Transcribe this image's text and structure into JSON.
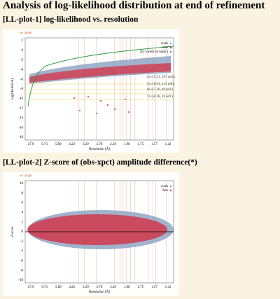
{
  "header": {
    "title": "Analysis of log-likelihood distribution at end of refinement"
  },
  "sections": [
    {
      "heading": "[LL-plot-1] log-likelihood vs. resolution",
      "plot": {
        "range_note": "no range",
        "y_label": "log(likelihood)",
        "x_label": "Resolution [Å]",
        "yticks": [
          "2",
          "0",
          "-2",
          "-4",
          "-6",
          "-8",
          "-10",
          "-12",
          "-14",
          "-16",
          "-18"
        ],
        "xticks": [
          "27.9",
          "9.73",
          "5.89",
          "4.22",
          "3.29",
          "2.70",
          "2.29",
          "1.98",
          "1.75",
          "1.57",
          "1.42"
        ],
        "legend": [
          "work",
          "free",
          "all, sorted on log(L)"
        ],
        "annotations": [
          "4σ (-5.31, 297 refl.)",
          "5σ (-6.53, 113 refl.)",
          "6σ (-7.36, 49 refl.)",
          "7σ (-8.38, 18 refl.)"
        ]
      }
    },
    {
      "heading": "[LL-plot-2] Z-score of (obs-xpct) amplitude difference(*)",
      "plot": {
        "range_note": "no range",
        "y_label": "Z-score",
        "x_label": "Resolution [Å]",
        "yticks": [
          "10",
          "8",
          "6",
          "4",
          "2",
          "0",
          "-2",
          "-4",
          "-6",
          "-8",
          "-10"
        ],
        "xticks": [
          "27.9",
          "9.73",
          "5.89",
          "4.22",
          "3.29",
          "2.70",
          "2.29",
          "1.98",
          "1.75",
          "1.57",
          "1.42"
        ],
        "legend": [
          "work",
          "free"
        ],
        "annotations": []
      }
    }
  ]
}
